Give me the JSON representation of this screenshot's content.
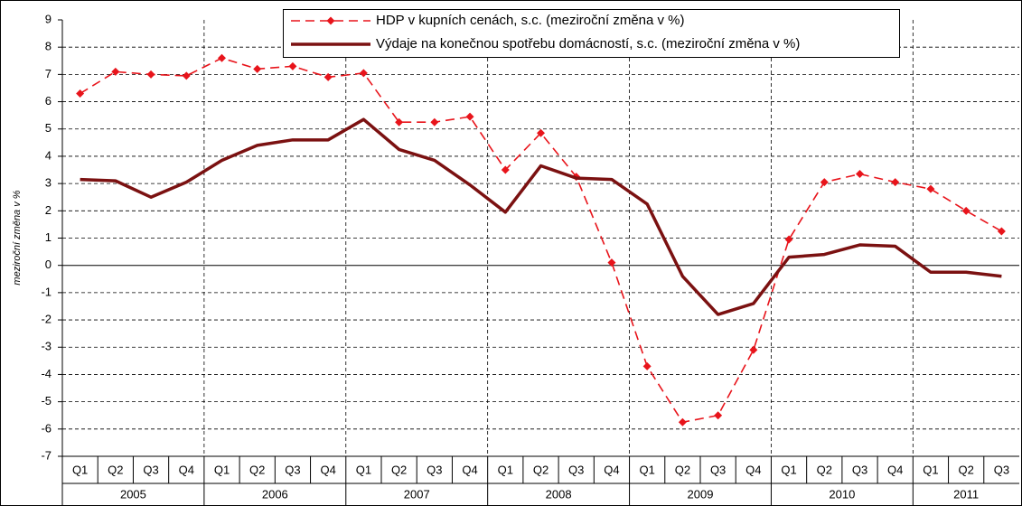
{
  "chart_data": {
    "type": "line",
    "y_label": "meziroční změna v %",
    "category_groups": [
      {
        "label": "2005",
        "categories": [
          "Q1",
          "Q2",
          "Q3",
          "Q4"
        ]
      },
      {
        "label": "2006",
        "categories": [
          "Q1",
          "Q2",
          "Q3",
          "Q4"
        ]
      },
      {
        "label": "2007",
        "categories": [
          "Q1",
          "Q2",
          "Q3",
          "Q4"
        ]
      },
      {
        "label": "2008",
        "categories": [
          "Q1",
          "Q2",
          "Q3",
          "Q4"
        ]
      },
      {
        "label": "2009",
        "categories": [
          "Q1",
          "Q2",
          "Q3",
          "Q4"
        ]
      },
      {
        "label": "2010",
        "categories": [
          "Q1",
          "Q2",
          "Q3",
          "Q4"
        ]
      },
      {
        "label": "2011",
        "categories": [
          "Q1",
          "Q2",
          "Q3"
        ]
      }
    ],
    "series": [
      {
        "name": "HDP v kupních cenách, s.c. (meziroční změna v %)",
        "color": "#e8141b",
        "dashed": true,
        "markers": true,
        "values": [
          6.3,
          7.1,
          7.0,
          6.95,
          7.6,
          7.2,
          7.3,
          6.9,
          7.05,
          5.25,
          5.25,
          5.45,
          3.5,
          4.85,
          3.25,
          0.1,
          -3.7,
          -5.75,
          -5.5,
          -3.1,
          0.95,
          3.05,
          3.35,
          3.05,
          2.8,
          2.0,
          1.25
        ]
      },
      {
        "name": "Výdaje na konečnou spotřebu domácností, s.c. (meziroční změna v %)",
        "color": "#7b1111",
        "dashed": false,
        "markers": false,
        "values": [
          3.15,
          3.1,
          2.5,
          3.05,
          3.85,
          4.4,
          4.6,
          4.6,
          5.35,
          4.25,
          3.85,
          2.95,
          1.95,
          3.65,
          3.2,
          3.15,
          2.25,
          -0.4,
          -1.8,
          -1.4,
          0.3,
          0.4,
          0.75,
          0.7,
          -0.25,
          -0.25,
          -0.4
        ]
      }
    ],
    "ylim": [
      -7,
      9
    ],
    "yticks": [
      -7,
      -6,
      -5,
      -4,
      -3,
      -2,
      -1,
      0,
      1,
      2,
      3,
      4,
      5,
      6,
      7,
      8,
      9
    ],
    "grid": true
  }
}
